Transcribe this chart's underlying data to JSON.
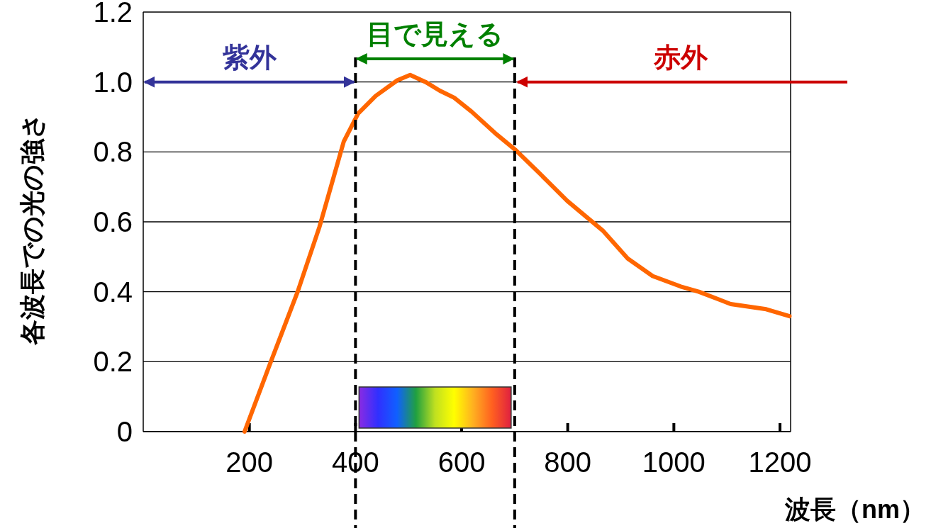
{
  "chart_data": {
    "type": "line",
    "xlabel": "波長（nm）",
    "ylabel": "各波長での光の強さ",
    "x": [
      191,
      238,
      291,
      332,
      378,
      405,
      438,
      479,
      503,
      532,
      559,
      586,
      619,
      666,
      702,
      746,
      799,
      866,
      913,
      960,
      1013,
      1047,
      1107,
      1174,
      1218
    ],
    "series": [
      {
        "color": "#ff6600",
        "values": [
          0,
          0.19,
          0.4,
          0.585,
          0.83,
          0.91,
          0.96,
          1.005,
          1.02,
          1,
          0.975,
          0.955,
          0.915,
          0.85,
          0.805,
          0.74,
          0.66,
          0.575,
          0.495,
          0.445,
          0.415,
          0.4,
          0.365,
          0.35,
          0.33
        ]
      }
    ],
    "xlim": [
      0,
      1220
    ],
    "xticks": [
      200,
      400,
      600,
      800,
      1000,
      1200
    ],
    "ylim": [
      0,
      1.2
    ],
    "yticks": [
      0,
      0.2,
      0.4,
      0.6,
      0.8,
      {
        "value": 1,
        "label": "1.0"
      },
      1.2
    ],
    "grid": "y",
    "marker": "none",
    "line_style": "solid",
    "ref_lines": [
      {
        "axis": "x",
        "value": 400,
        "line_style": "dashed",
        "color": "#000000"
      },
      {
        "axis": "x",
        "value": 700,
        "line_style": "dashed",
        "color": "#000000"
      }
    ],
    "annotations": [
      "紫外",
      "目で見える",
      "赤外"
    ]
  }
}
